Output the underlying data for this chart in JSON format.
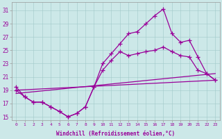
{
  "background_color": "#cce8e8",
  "line_color": "#990099",
  "xlabel": "Windchill (Refroidissement éolien,°C)",
  "xlim_min": -0.5,
  "xlim_max": 23.5,
  "ylim_min": 14.5,
  "ylim_max": 32.2,
  "xticks": [
    0,
    1,
    2,
    3,
    4,
    5,
    6,
    7,
    8,
    9,
    10,
    11,
    12,
    13,
    14,
    15,
    16,
    17,
    18,
    19,
    20,
    21,
    22,
    23
  ],
  "yticks": [
    15,
    17,
    19,
    21,
    23,
    25,
    27,
    29,
    31
  ],
  "line1_x": [
    0,
    1,
    2,
    3,
    4,
    5,
    6,
    7,
    8,
    9,
    10,
    11,
    12,
    13,
    14,
    15,
    16,
    17,
    18,
    19,
    20,
    21,
    22,
    23
  ],
  "line1_y": [
    19.5,
    18.0,
    17.2,
    17.2,
    16.5,
    15.8,
    15.0,
    15.5,
    16.5,
    19.5,
    23.0,
    24.5,
    26.0,
    27.5,
    27.8,
    29.0,
    30.2,
    31.2,
    27.5,
    26.2,
    26.5,
    24.0,
    21.5,
    20.5
  ],
  "line2_x": [
    0,
    1,
    2,
    3,
    4,
    5,
    6,
    7,
    8,
    9,
    10,
    11,
    12,
    13,
    14,
    15,
    16,
    17,
    18,
    19,
    20,
    21,
    22,
    23
  ],
  "line2_y": [
    19.0,
    18.0,
    17.2,
    17.2,
    16.5,
    15.8,
    15.0,
    15.5,
    16.5,
    19.5,
    22.0,
    23.5,
    24.8,
    24.2,
    24.5,
    24.8,
    25.0,
    25.5,
    24.8,
    24.2,
    24.0,
    22.0,
    21.5,
    20.5
  ],
  "line3_x": [
    0,
    23
  ],
  "line3_y": [
    19.0,
    20.5
  ],
  "line4_x": [
    0,
    23
  ],
  "line4_y": [
    18.5,
    21.5
  ]
}
